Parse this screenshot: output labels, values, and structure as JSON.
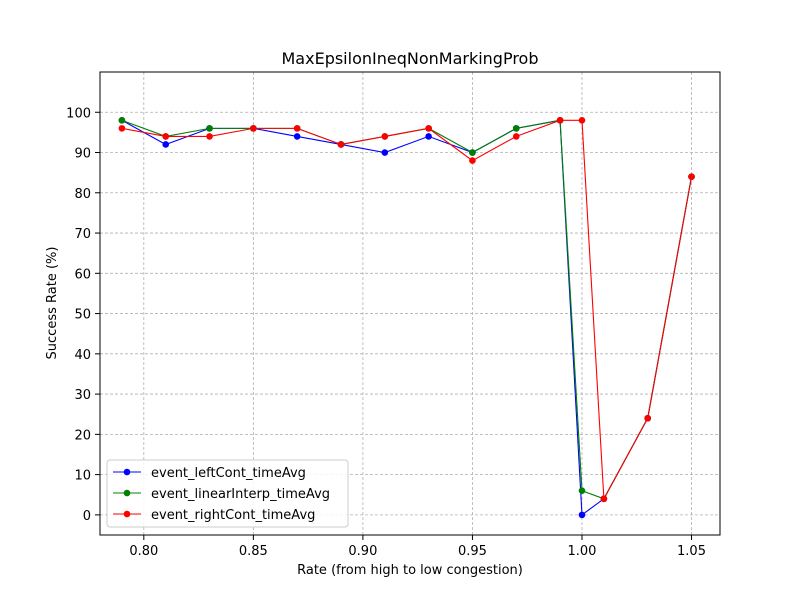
{
  "chart_data": {
    "type": "line",
    "title": "MaxEpsilonIneqNonMarkingProb",
    "xlabel": "Rate (from high to low congestion)",
    "ylabel": "Success Rate (%)",
    "xlim": [
      0.78,
      1.063
    ],
    "ylim": [
      -5,
      110
    ],
    "xticks": [
      0.8,
      0.85,
      0.9,
      0.95,
      1.0,
      1.05
    ],
    "xtick_labels": [
      "0.80",
      "0.85",
      "0.90",
      "0.95",
      "1.00",
      "1.05"
    ],
    "yticks": [
      0,
      10,
      20,
      30,
      40,
      50,
      60,
      70,
      80,
      90,
      100
    ],
    "ytick_labels": [
      "0",
      "10",
      "20",
      "30",
      "40",
      "50",
      "60",
      "70",
      "80",
      "90",
      "100"
    ],
    "grid": true,
    "legend_position": "lower-left",
    "x": [
      0.79,
      0.81,
      0.83,
      0.85,
      0.87,
      0.89,
      0.91,
      0.93,
      0.95,
      0.97,
      0.99,
      1.0,
      1.01,
      1.03,
      1.05
    ],
    "series": [
      {
        "name": "event_leftCont_timeAvg",
        "color": "#0000ff",
        "values": [
          98,
          92,
          96,
          96,
          94,
          92,
          90,
          94,
          90,
          96,
          98,
          0,
          4,
          24,
          84
        ]
      },
      {
        "name": "event_linearInterp_timeAvg",
        "color": "#008000",
        "values": [
          98,
          94,
          96,
          96,
          96,
          92,
          94,
          96,
          90,
          96,
          98,
          6,
          4,
          24,
          84
        ]
      },
      {
        "name": "event_rightCont_timeAvg",
        "color": "#ff0000",
        "values": [
          96,
          94,
          94,
          96,
          96,
          92,
          94,
          96,
          88,
          94,
          98,
          98,
          4,
          24,
          84
        ]
      }
    ]
  }
}
